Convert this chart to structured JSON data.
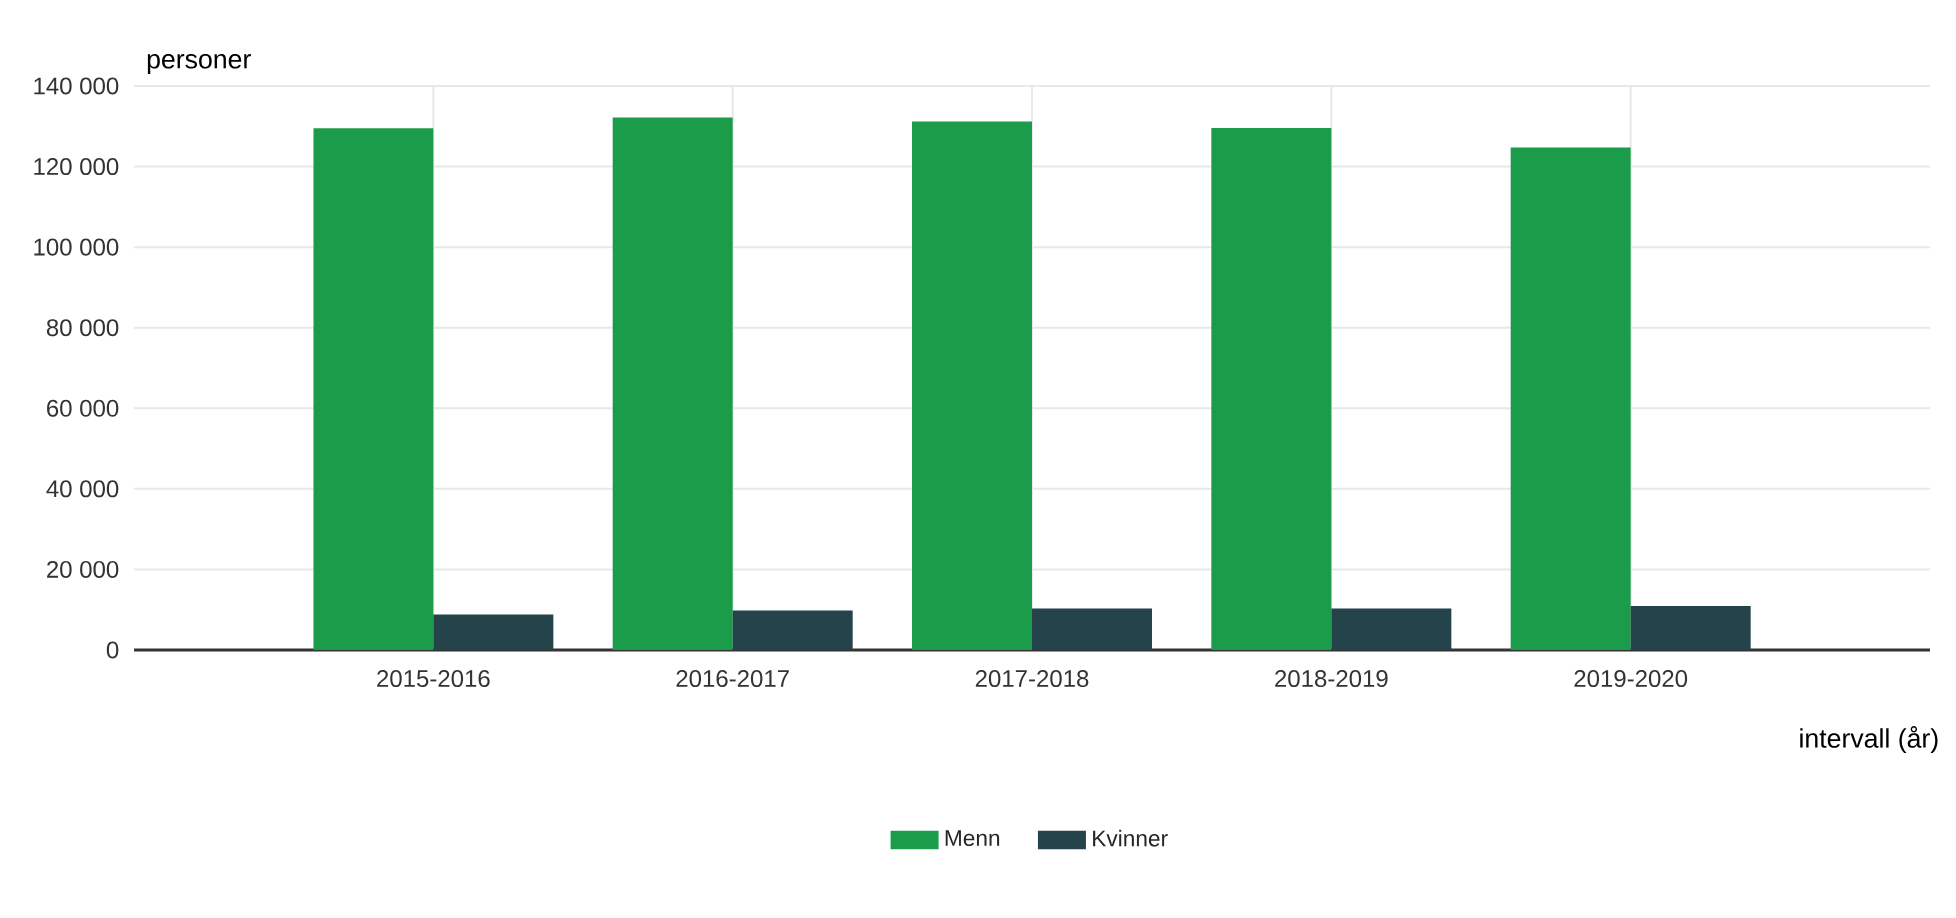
{
  "chart_data": {
    "type": "bar",
    "ylabel": "personer",
    "xlabel": "intervall (år)",
    "categories": [
      "2015-2016",
      "2016-2017",
      "2017-2018",
      "2018-2019",
      "2019-2020"
    ],
    "series": [
      {
        "name": "Menn",
        "color": "#1b9c4a",
        "values": [
          129500,
          132200,
          131200,
          129600,
          124700
        ]
      },
      {
        "name": "Kvinner",
        "color": "#25434a",
        "values": [
          8800,
          9800,
          10300,
          10300,
          10900
        ]
      }
    ],
    "ylim": [
      0,
      140000
    ],
    "yticks": [
      {
        "value": 0,
        "label": "0"
      },
      {
        "value": 20000,
        "label": "20 000"
      },
      {
        "value": 40000,
        "label": "40 000"
      },
      {
        "value": 60000,
        "label": "60 000"
      },
      {
        "value": 80000,
        "label": "80 000"
      },
      {
        "value": 100000,
        "label": "100 000"
      },
      {
        "value": 120000,
        "label": "120 000"
      },
      {
        "value": 140000,
        "label": "140 000"
      }
    ],
    "grid": true,
    "legend": "bottom"
  }
}
